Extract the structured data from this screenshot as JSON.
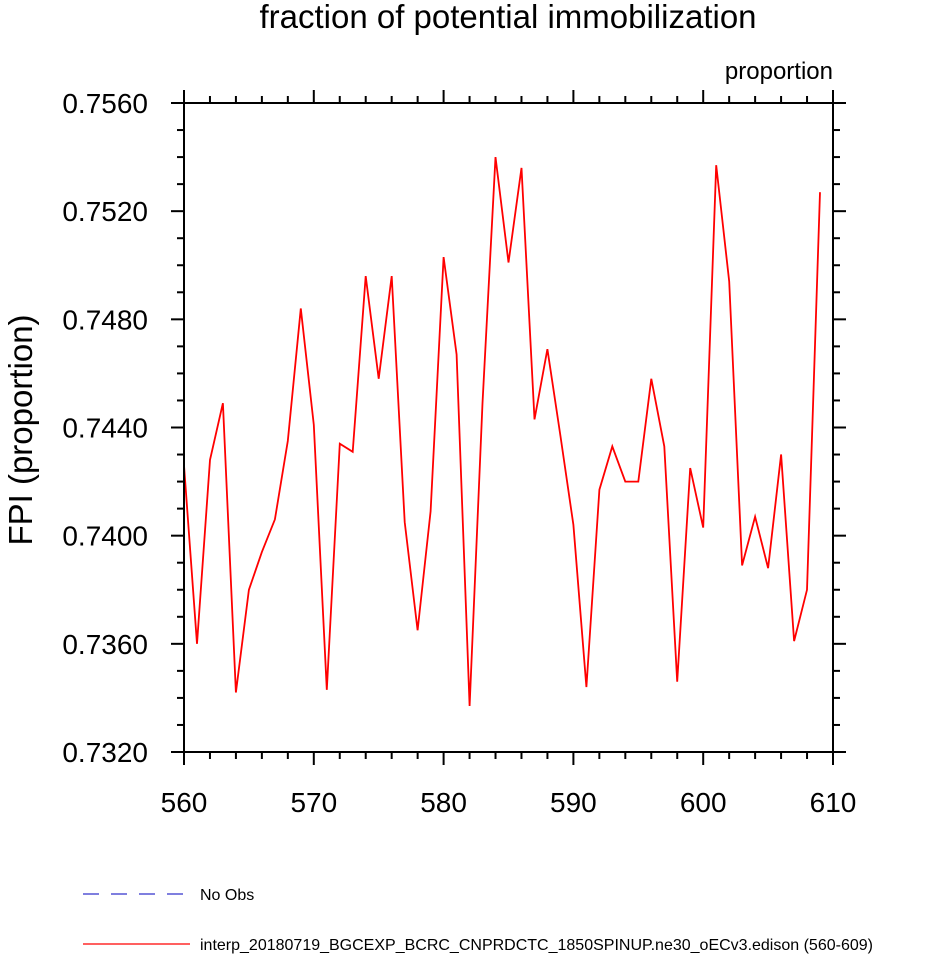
{
  "chart_data": {
    "type": "line",
    "title": "fraction of potential immobilization",
    "units_label": "proportion",
    "ylabel": "FPI  (proportion)",
    "xlabel": "",
    "xlim": [
      560,
      610
    ],
    "ylim": [
      0.732,
      0.756
    ],
    "x_ticks": [
      "560",
      "570",
      "580",
      "590",
      "600",
      "610"
    ],
    "y_ticks": [
      "0.7320",
      "0.7360",
      "0.7400",
      "0.7440",
      "0.7480",
      "0.7520",
      "0.7560"
    ],
    "series": [
      {
        "name": "interp_20180719_BGCEXP_BCRC_CNPRDCTC_1850SPINUP.ne30_oECv3.edison (560-609)",
        "color": "#ff0000",
        "x": [
          560,
          561,
          562,
          563,
          564,
          565,
          566,
          567,
          568,
          569,
          570,
          571,
          572,
          573,
          574,
          575,
          576,
          577,
          578,
          579,
          580,
          581,
          582,
          583,
          584,
          585,
          586,
          587,
          588,
          589,
          590,
          591,
          592,
          593,
          594,
          595,
          596,
          597,
          598,
          599,
          600,
          601,
          602,
          603,
          604,
          605,
          606,
          607,
          608,
          609
        ],
        "values": [
          0.7426,
          0.736,
          0.7428,
          0.7449,
          0.7342,
          0.738,
          0.7394,
          0.7406,
          0.7435,
          0.7484,
          0.7441,
          0.7343,
          0.7434,
          0.7431,
          0.7496,
          0.7458,
          0.7496,
          0.7405,
          0.7365,
          0.7409,
          0.7503,
          0.7467,
          0.7337,
          0.7449,
          0.754,
          0.7501,
          0.7536,
          0.7443,
          0.7469,
          0.7437,
          0.7404,
          0.7344,
          0.7417,
          0.7433,
          0.742,
          0.742,
          0.7458,
          0.7433,
          0.7346,
          0.7425,
          0.7403,
          0.7537,
          0.7494,
          0.7389,
          0.7407,
          0.7388,
          0.743,
          0.7361,
          0.738,
          0.7527
        ]
      }
    ],
    "legend": [
      {
        "label": "No Obs",
        "color": "#3333cc",
        "style": "dashed"
      },
      {
        "label": "interp_20180719_BGCEXP_BCRC_CNPRDCTC_1850SPINUP.ne30_oECv3.edison (560-609)",
        "color": "#ff0000",
        "style": "solid"
      }
    ]
  }
}
